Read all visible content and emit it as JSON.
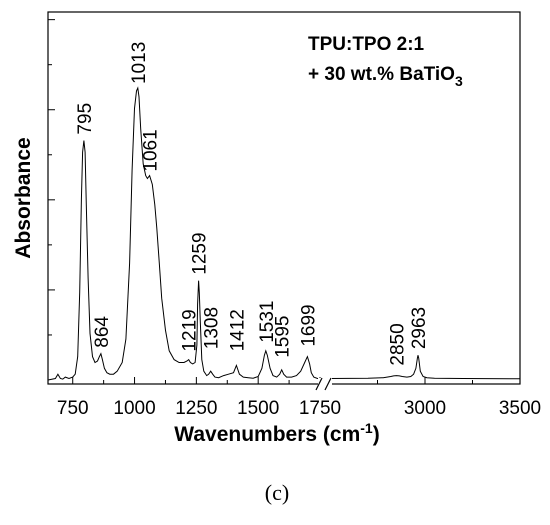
{
  "chart_data": {
    "type": "line",
    "xlabel_base": "Wavenumbers (cm",
    "xlabel_sup": "-1",
    "xlabel_end": ")",
    "ylabel": "Absorbance",
    "annotation": {
      "line1": "TPU:TPO 2:1",
      "line2_base": "+ 30 wt.% BaTiO",
      "line2_sub": "3"
    },
    "caption": "(c)",
    "x_axis": {
      "segments": [
        {
          "range": [
            650,
            1750
          ],
          "ticks": [
            "750",
            "1000",
            "1250",
            "1500",
            "1750"
          ]
        },
        {
          "range": [
            2500,
            3500
          ],
          "ticks": [
            "3000",
            "3500"
          ]
        }
      ],
      "axis_break": true
    },
    "y_axis": {
      "tick_labels_shown": false,
      "ylim": [
        0,
        1
      ]
    },
    "grid": false,
    "peaks": [
      {
        "label": "795",
        "x": 795,
        "y": 0.82
      },
      {
        "label": "864",
        "x": 864,
        "y": 0.09
      },
      {
        "label": "1013",
        "x": 1013,
        "y": 1.0
      },
      {
        "label": "1061",
        "x": 1061,
        "y": 0.7
      },
      {
        "label": "1219",
        "x": 1219,
        "y": 0.07
      },
      {
        "label": "1259",
        "x": 1259,
        "y": 0.34
      },
      {
        "label": "1308",
        "x": 1308,
        "y": 0.03
      },
      {
        "label": "1412",
        "x": 1412,
        "y": 0.05
      },
      {
        "label": "1531",
        "x": 1531,
        "y": 0.1
      },
      {
        "label": "1595",
        "x": 1595,
        "y": 0.035
      },
      {
        "label": "1699",
        "x": 1699,
        "y": 0.08
      },
      {
        "label": "2850",
        "x": 2850,
        "y": 0.015
      },
      {
        "label": "2963",
        "x": 2963,
        "y": 0.085
      }
    ],
    "series": [
      {
        "x": [
          650,
          680,
          690,
          700,
          710,
          720,
          735,
          750,
          760,
          770,
          778,
          785,
          790,
          795,
          800,
          805,
          812,
          820,
          830,
          840,
          850,
          858,
          864,
          870,
          878,
          888,
          900,
          915,
          930,
          950,
          965,
          980,
          990,
          1000,
          1008,
          1013,
          1018,
          1025,
          1035,
          1045,
          1052,
          1061,
          1072,
          1082,
          1090,
          1100,
          1110,
          1125,
          1140,
          1160,
          1180,
          1200,
          1212,
          1219,
          1226,
          1235,
          1245,
          1252,
          1255,
          1259,
          1262,
          1266,
          1272,
          1280,
          1292,
          1300,
          1308,
          1316,
          1325,
          1340,
          1360,
          1380,
          1400,
          1412,
          1424,
          1440,
          1460,
          1480,
          1500,
          1515,
          1525,
          1531,
          1537,
          1548,
          1560,
          1575,
          1587,
          1595,
          1603,
          1615,
          1635,
          1655,
          1672,
          1688,
          1699,
          1708,
          1715,
          1725,
          1740,
          1750
        ],
        "y": [
          0.0,
          0.005,
          0.02,
          0.005,
          0.003,
          0.01,
          0.005,
          0.01,
          0.02,
          0.08,
          0.3,
          0.62,
          0.78,
          0.82,
          0.78,
          0.6,
          0.35,
          0.16,
          0.08,
          0.06,
          0.065,
          0.08,
          0.09,
          0.07,
          0.04,
          0.025,
          0.02,
          0.02,
          0.03,
          0.06,
          0.14,
          0.4,
          0.72,
          0.93,
          0.99,
          1.0,
          0.97,
          0.86,
          0.74,
          0.7,
          0.69,
          0.7,
          0.67,
          0.6,
          0.52,
          0.4,
          0.28,
          0.17,
          0.1,
          0.07,
          0.06,
          0.06,
          0.065,
          0.07,
          0.06,
          0.055,
          0.06,
          0.12,
          0.26,
          0.34,
          0.3,
          0.2,
          0.07,
          0.03,
          0.015,
          0.02,
          0.03,
          0.02,
          0.01,
          0.008,
          0.015,
          0.02,
          0.025,
          0.05,
          0.02,
          0.01,
          0.008,
          0.006,
          0.012,
          0.04,
          0.085,
          0.1,
          0.085,
          0.04,
          0.015,
          0.01,
          0.02,
          0.035,
          0.02,
          0.01,
          0.01,
          0.015,
          0.03,
          0.06,
          0.08,
          0.055,
          0.025,
          0.01,
          0.005,
          0.005
        ]
      },
      {
        "x": [
          2500,
          2700,
          2780,
          2820,
          2835,
          2850,
          2865,
          2880,
          2905,
          2925,
          2940,
          2952,
          2960,
          2963,
          2967,
          2975,
          2990,
          3010,
          3050,
          3200,
          3500
        ],
        "y": [
          0.005,
          0.006,
          0.008,
          0.012,
          0.014,
          0.015,
          0.014,
          0.012,
          0.01,
          0.012,
          0.02,
          0.04,
          0.075,
          0.085,
          0.075,
          0.03,
          0.012,
          0.008,
          0.006,
          0.005,
          0.004
        ]
      }
    ]
  }
}
